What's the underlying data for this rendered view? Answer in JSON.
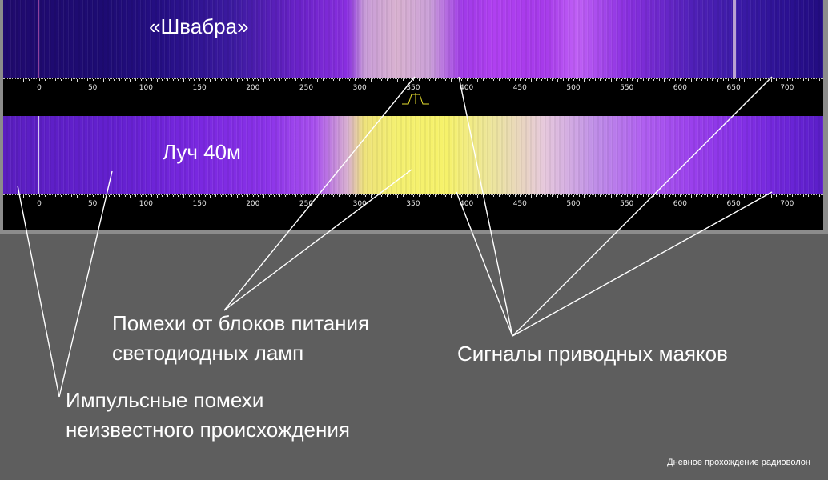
{
  "top_waterfall": {
    "label": "«Швабра»"
  },
  "bottom_waterfall": {
    "label": "Луч 40м"
  },
  "scale": {
    "ticks": [
      "0",
      "50",
      "100",
      "150",
      "200",
      "250",
      "300",
      "350",
      "400",
      "450",
      "500",
      "550",
      "600",
      "650",
      "700"
    ]
  },
  "annotations": {
    "led_noise": [
      "Помехи от блоков питания",
      "светодиодных ламп"
    ],
    "beacons": "Сигналы приводных маяков",
    "impulse_noise": [
      "Импульсные помехи",
      "неизвестного происхождения"
    ]
  },
  "footer": "Дневное прохождение радиоволон"
}
